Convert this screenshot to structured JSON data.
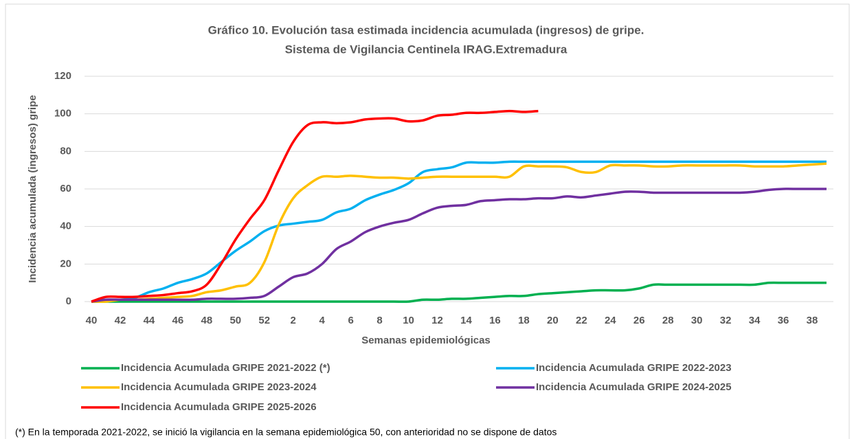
{
  "chart_data": {
    "type": "line",
    "title": "Gráfico 10. Evolución tasa estimada incidencia acumulada (ingresos) de gripe.",
    "subtitle": "Sistema de Vigilancia Centinela IRAG.Extremadura",
    "y_label": "Incidencia acumulada (ingresos) gripe",
    "x_label": "Semanas epidemiológicas",
    "note": "(*) En la temporada 2021-2022, se inició la vigilancia en la semana epidemiológica 50, con anterioridad no se dispone de datos",
    "categories": [
      "40",
      null,
      "42",
      null,
      "44",
      null,
      "46",
      null,
      "48",
      null,
      "50",
      null,
      "52",
      null,
      "2",
      null,
      "4",
      null,
      "6",
      null,
      "8",
      null,
      "10",
      null,
      "12",
      null,
      "14",
      null,
      "16",
      null,
      "18",
      null,
      "20",
      null,
      "22",
      null,
      "24",
      null,
      "26",
      null,
      "28",
      null,
      "30",
      null,
      "32",
      null,
      "34",
      null,
      "36",
      null,
      "38",
      null
    ],
    "ylim": [
      0,
      120
    ],
    "yticks": [
      0,
      20,
      40,
      60,
      80,
      100,
      120
    ],
    "grid": true,
    "series": [
      {
        "name": "Incidencia Acumulada GRIPE 2021-2022 (*)",
        "color": "#00b050",
        "values": [
          0,
          0,
          0,
          0,
          0,
          0,
          0,
          0,
          0,
          0,
          0,
          0,
          0,
          0,
          0,
          0,
          0,
          0,
          0,
          0,
          0,
          0,
          0,
          1,
          1,
          1.5,
          1.5,
          2,
          2.5,
          3,
          3,
          4,
          4.5,
          5,
          5.5,
          6,
          6,
          6,
          7,
          9,
          9,
          9,
          9,
          9,
          9,
          9,
          9,
          10,
          10,
          10,
          10,
          10
        ]
      },
      {
        "name": "Incidencia Acumulada GRIPE 2022-2023",
        "color": "#00b0f0",
        "values": [
          0,
          1,
          1,
          2,
          5,
          7,
          10,
          12,
          15,
          21,
          27,
          32,
          37.5,
          40.5,
          41.5,
          42.5,
          43.5,
          47.5,
          49.5,
          54,
          57,
          59.5,
          63,
          69,
          70.5,
          71.5,
          74,
          74,
          74,
          74.5,
          74.5,
          74.5,
          74.5,
          74.5,
          74.5,
          74.5,
          74.5,
          74.5,
          74.5,
          74.5,
          74.5,
          74.5,
          74.5,
          74.5,
          74.5,
          74.5,
          74.5,
          74.5,
          74.5,
          74.5,
          74.5,
          74.5
        ]
      },
      {
        "name": "Incidencia Acumulada GRIPE 2023-2024",
        "color": "#ffc000",
        "values": [
          0,
          0,
          1,
          1,
          1.5,
          2,
          2.5,
          3,
          5,
          6,
          8,
          10,
          21,
          41,
          55,
          62,
          66.5,
          66.5,
          67,
          66.5,
          66,
          66,
          65.5,
          66,
          66.5,
          66.5,
          66.5,
          66.5,
          66.5,
          66.5,
          72,
          72,
          72,
          71.5,
          69,
          69,
          72.5,
          72.5,
          72.5,
          72,
          72,
          72.5,
          72.5,
          72.5,
          72.5,
          72.5,
          72,
          72,
          72,
          72.5,
          73,
          73.5
        ]
      },
      {
        "name": "Incidencia Acumulada GRIPE 2024-2025",
        "color": "#7030a0",
        "values": [
          0,
          1,
          1,
          1,
          1,
          1,
          1,
          1,
          1.5,
          1.5,
          1.5,
          2,
          3,
          8,
          13,
          15,
          20,
          28,
          32,
          37,
          40,
          42,
          43.5,
          47,
          50,
          51,
          51.5,
          53.5,
          54,
          54.5,
          54.5,
          55,
          55,
          56,
          55.5,
          56.5,
          57.5,
          58.5,
          58.5,
          58,
          58,
          58,
          58,
          58,
          58,
          58,
          58.5,
          59.5,
          60,
          60,
          60,
          60
        ]
      },
      {
        "name": "Incidencia Acumulada GRIPE 2025-2026",
        "color": "#ff0000",
        "values": [
          0,
          2.5,
          2.5,
          2.5,
          3,
          3.5,
          4.5,
          5.5,
          9,
          20,
          33,
          44,
          54,
          70,
          85,
          94,
          95.5,
          95,
          95.5,
          97,
          97.5,
          97.5,
          96,
          96.5,
          99,
          99.5,
          100.5,
          100.5,
          101,
          101.5,
          101,
          101.5,
          null,
          null,
          null,
          null,
          null,
          null,
          null,
          null,
          null,
          null,
          null,
          null,
          null,
          null,
          null,
          null,
          null,
          null,
          null,
          null
        ]
      }
    ]
  }
}
